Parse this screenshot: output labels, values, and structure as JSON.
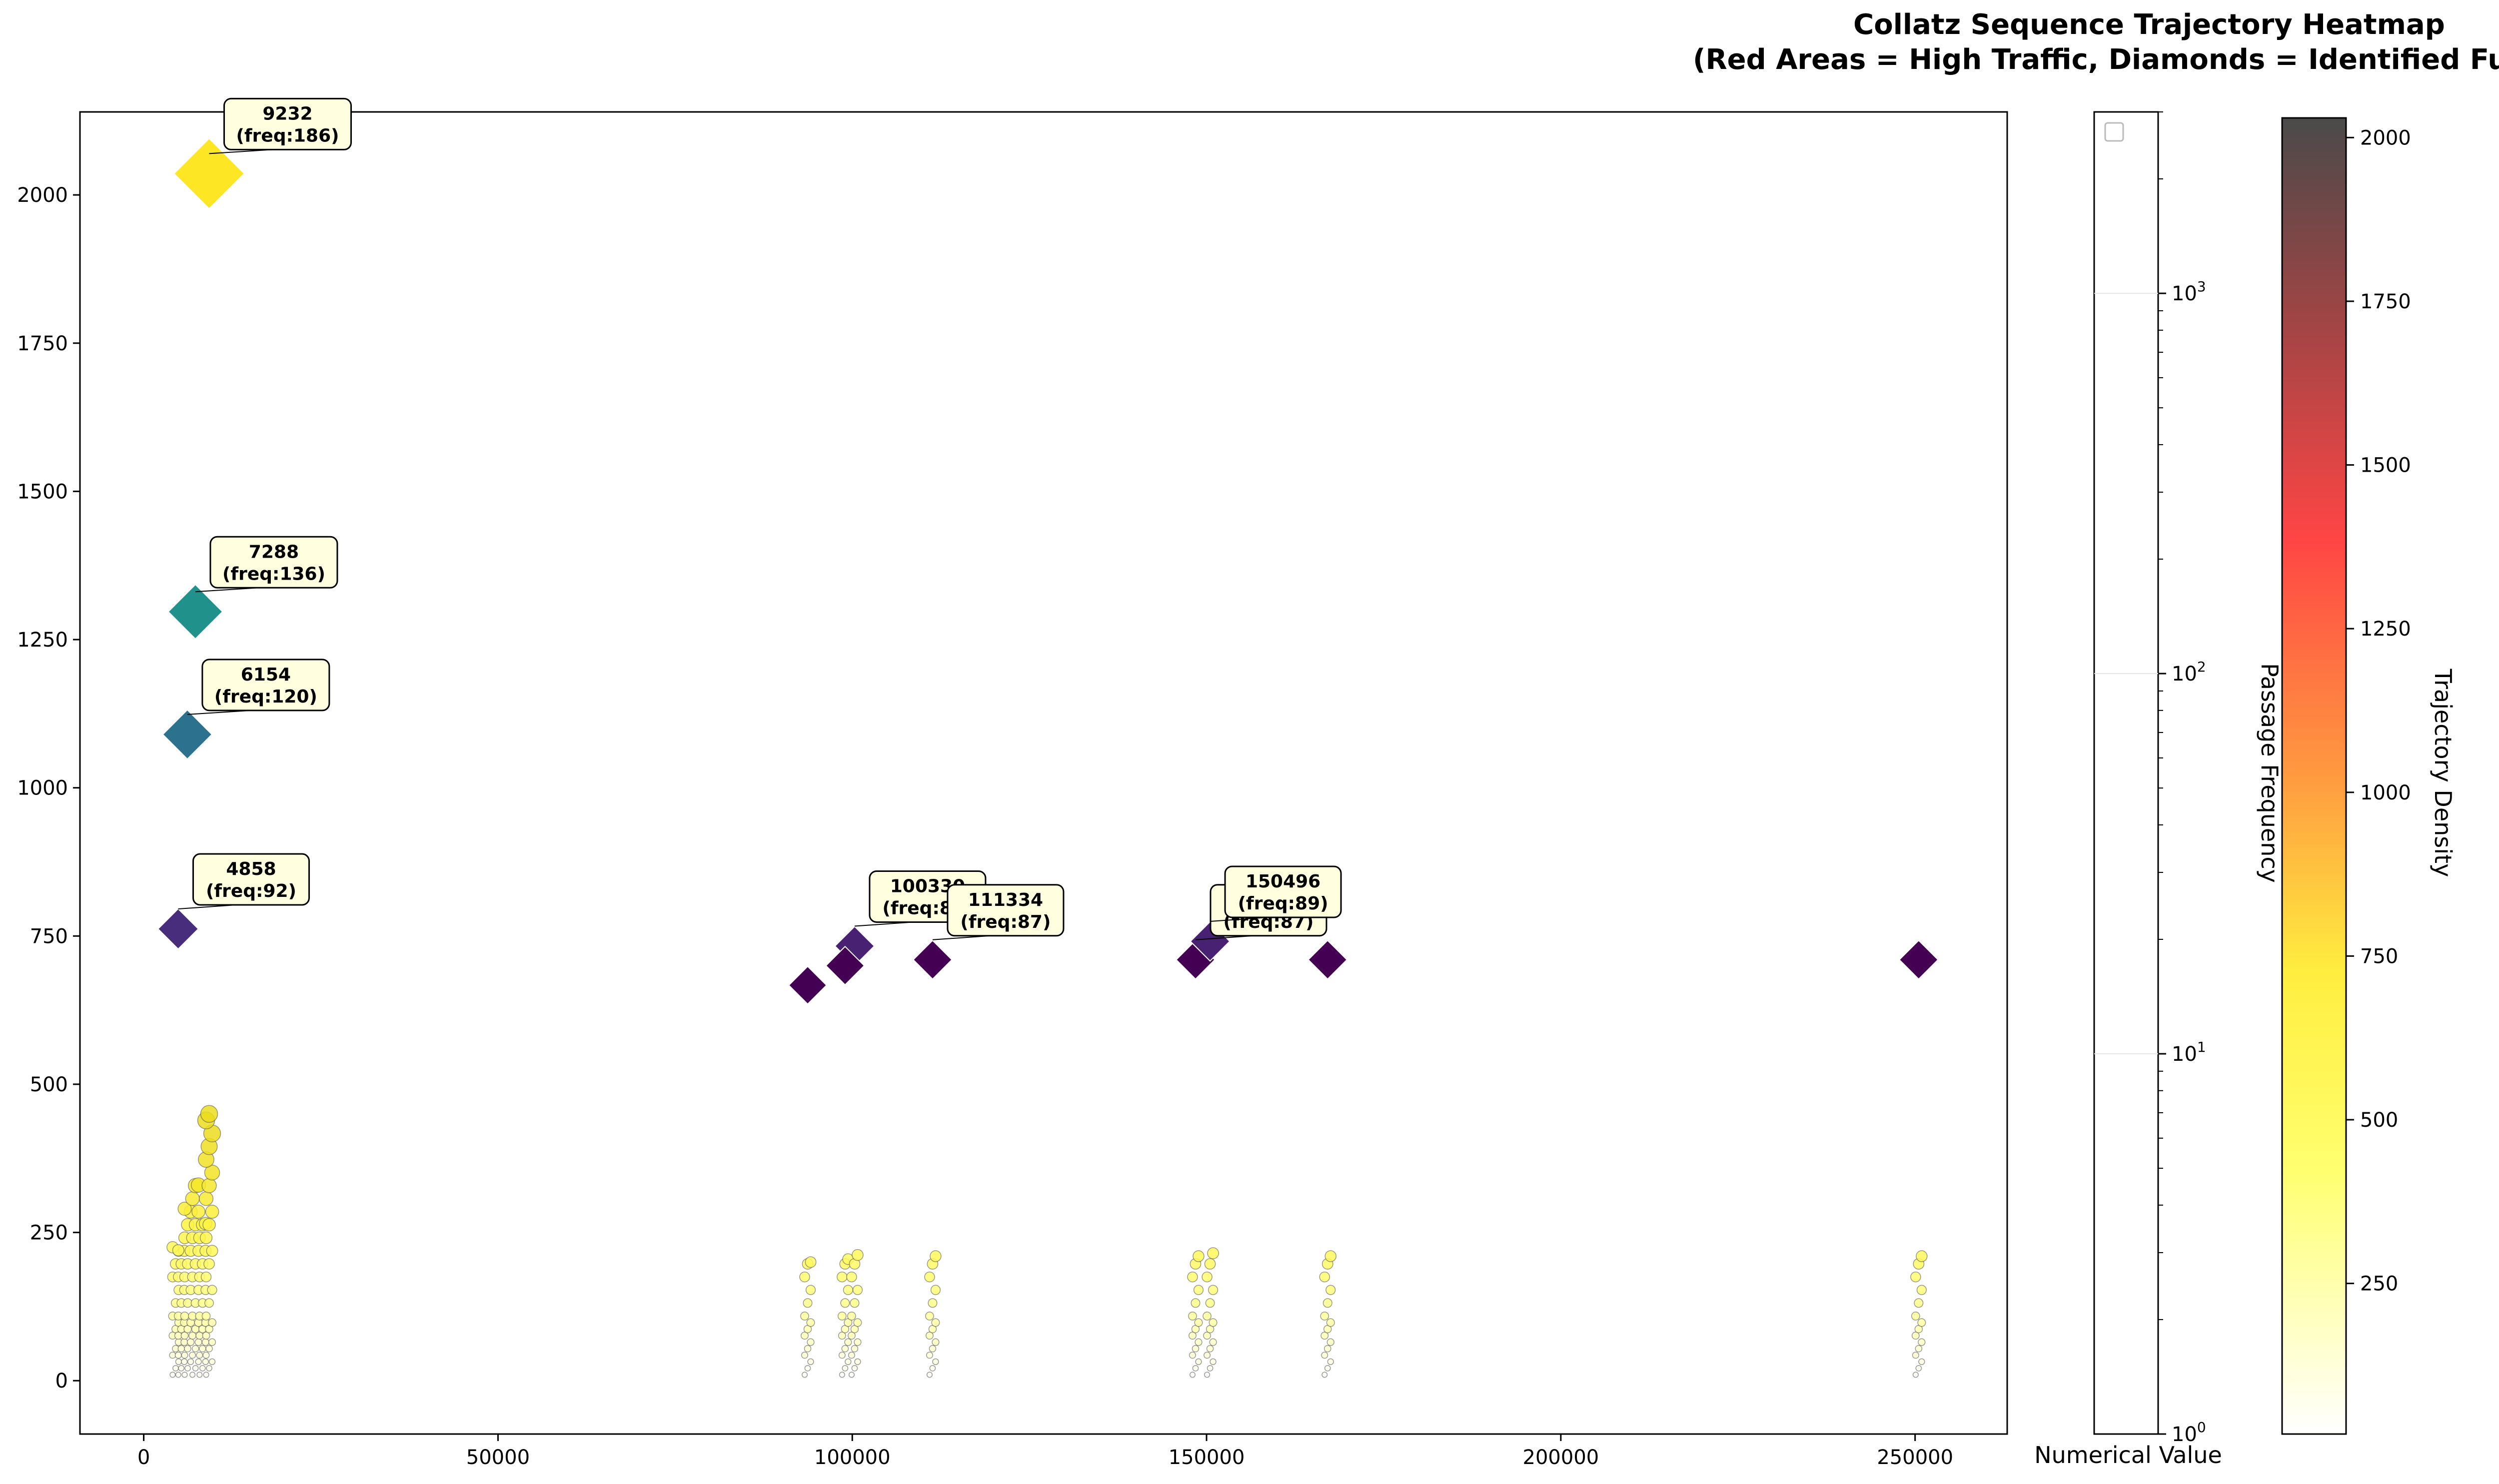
{
  "chart_data": {
    "type": "scatter",
    "title": "Collatz Sequence Trajectory Heatmap",
    "subtitle": "(Red Areas = High Traffic, Diamonds = Identified Funnels)",
    "xlabel": "Numerical Value",
    "ylabel": "",
    "xlim": [
      -9000,
      263000
    ],
    "ylim": [
      -90,
      2140
    ],
    "x_ticks": [
      0,
      50000,
      100000,
      150000,
      200000,
      250000
    ],
    "y_ticks": [
      0,
      250,
      500,
      750,
      1000,
      1250,
      1500,
      1750,
      2000
    ],
    "grid": false,
    "funnels": [
      {
        "x": 9232,
        "y": 2036,
        "value": 9232,
        "freq": 186,
        "color": "#fde725",
        "label": "9232",
        "freq_label": "(freq:186)"
      },
      {
        "x": 7288,
        "y": 1297,
        "value": 7288,
        "freq": 136,
        "color": "#21918c",
        "label": "7288",
        "freq_label": "(freq:136)"
      },
      {
        "x": 6154,
        "y": 1090,
        "value": 6154,
        "freq": 120,
        "color": "#2c728e",
        "label": "6154",
        "freq_label": "(freq:120)"
      },
      {
        "x": 4858,
        "y": 762,
        "value": 4858,
        "freq": 92,
        "color": "#472d7b",
        "label": "4858",
        "freq_label": "(freq:92)"
      },
      {
        "x": 100330,
        "y": 733,
        "value": 100330,
        "freq": 89,
        "color": "#482173",
        "label": "100330",
        "freq_label": "(freq:89)"
      },
      {
        "x": 111334,
        "y": 710,
        "value": 111334,
        "freq": 87,
        "color": "#440154",
        "label": "111334",
        "freq_label": "(freq:87)"
      },
      {
        "x": 148444,
        "y": 710,
        "value": 148444,
        "freq": 87,
        "color": "#440154",
        "label": "148444",
        "freq_label": "(freq:87)"
      },
      {
        "x": 150496,
        "y": 741,
        "value": 150496,
        "freq": 89,
        "color": "#482173",
        "label": "150496",
        "freq_label": "(freq:89)"
      },
      {
        "x": 93704,
        "y": 667,
        "value": 93704,
        "freq": 84,
        "color": "#440154"
      },
      {
        "x": 98984,
        "y": 700,
        "value": 98984,
        "freq": 86,
        "color": "#440154"
      },
      {
        "x": 167086,
        "y": 710,
        "value": 167086,
        "freq": 87,
        "color": "#440154"
      },
      {
        "x": 250504,
        "y": 710,
        "value": 250504,
        "freq": 87,
        "color": "#440154"
      }
    ],
    "trajectory_columns": [
      {
        "x": 4500,
        "max_y": 225
      },
      {
        "x": 5300,
        "max_y": 220
      },
      {
        "x": 6200,
        "max_y": 290
      },
      {
        "x": 7300,
        "max_y": 330
      },
      {
        "x": 8300,
        "max_y": 265
      },
      {
        "x": 9232,
        "max_y": 450
      },
      {
        "x": 93704,
        "max_y": 200
      },
      {
        "x": 98984,
        "max_y": 205
      },
      {
        "x": 100330,
        "max_y": 212
      },
      {
        "x": 111334,
        "max_y": 210
      },
      {
        "x": 148444,
        "max_y": 210
      },
      {
        "x": 150496,
        "max_y": 215
      },
      {
        "x": 167086,
        "max_y": 210
      },
      {
        "x": 250504,
        "max_y": 210
      }
    ],
    "colorbars": [
      {
        "label": "Passage Frequency",
        "scale": "log",
        "ticks": [
          "10",
          "10",
          "10",
          "10"
        ],
        "tick_exps": [
          "0",
          "1",
          "2",
          "3"
        ],
        "tick_values": [
          1,
          10,
          100,
          1000
        ],
        "range": [
          1,
          3000
        ]
      },
      {
        "label": "Trajectory Density",
        "scale": "linear",
        "colormap": "hot_r",
        "ticks": [
          "250",
          "500",
          "750",
          "1000",
          "1250",
          "1500",
          "1750",
          "2000"
        ],
        "tick_values": [
          250,
          500,
          750,
          1000,
          1250,
          1500,
          1750,
          2000
        ],
        "range": [
          20,
          2030
        ]
      }
    ]
  }
}
